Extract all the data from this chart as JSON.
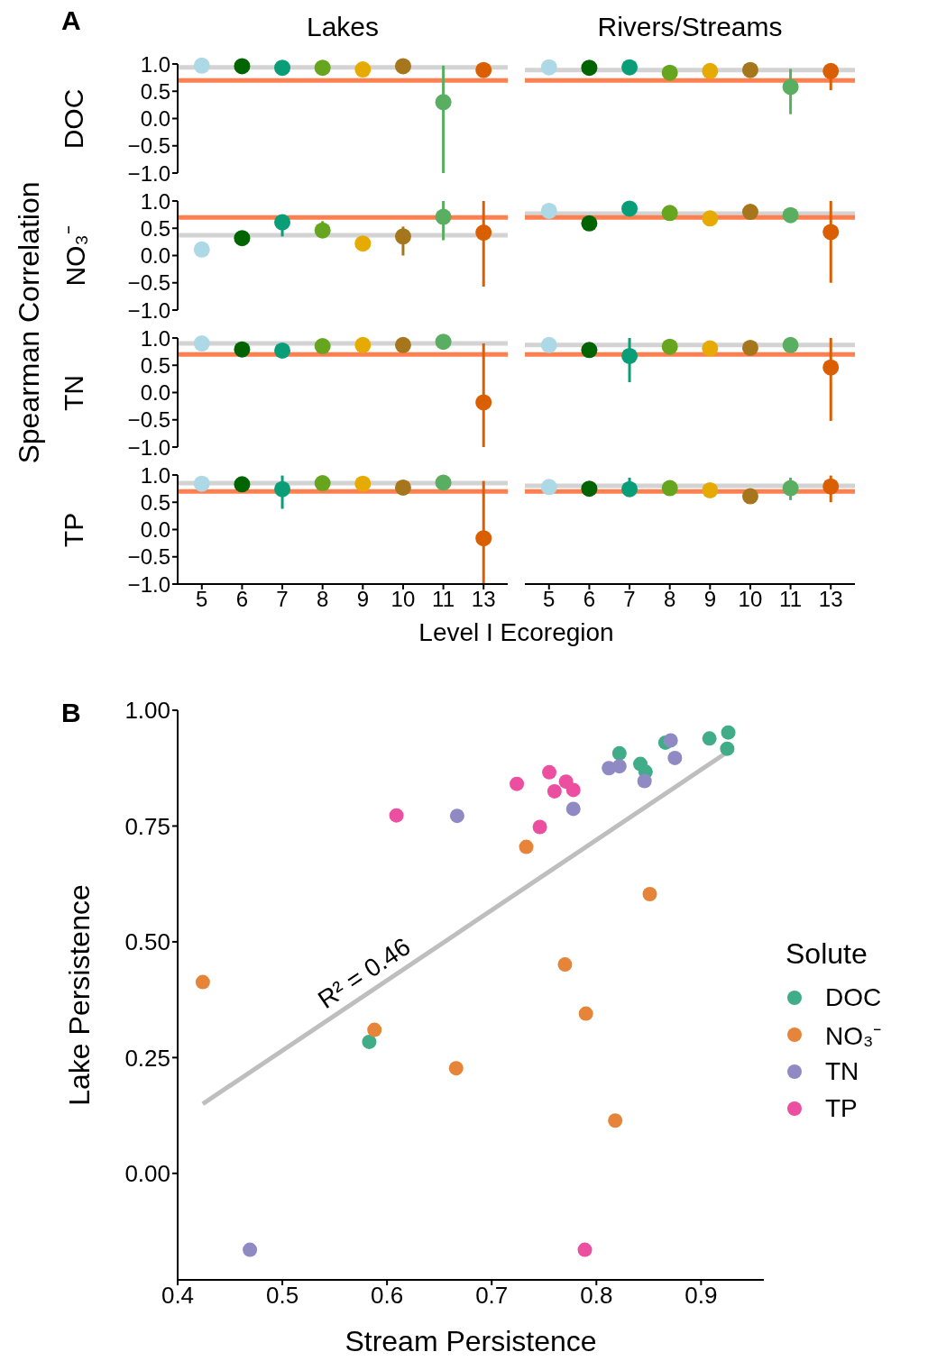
{
  "chart_data": [
    {
      "type": "scatter",
      "title": "Lakes",
      "ylabel": "DOC",
      "annotations": [
        "A",
        "Spearman Correlation"
      ],
      "categories": [
        "5",
        "6",
        "7",
        "8",
        "9",
        "10",
        "11",
        "13"
      ],
      "values": [
        0.97,
        0.96,
        0.93,
        0.93,
        0.9,
        0.96,
        0.3,
        0.89
      ],
      "colors": [
        "#add8e6",
        "#006400",
        "#0a9e78",
        "#66a61e",
        "#e6ab02",
        "#a6761d",
        "#5aae61",
        "#d95f02"
      ],
      "errors": [
        null,
        null,
        null,
        null,
        null,
        null,
        [
          -1.0,
          0.97
        ],
        null
      ],
      "ylim": [
        -1.0,
        1.0
      ],
      "yticks": [
        {
          "value": 1,
          "label": "1.0"
        },
        0.5,
        {
          "value": 0,
          "label": "0.0"
        },
        {
          "value": -0.5,
          "label": "−0.5"
        },
        {
          "value": -1,
          "label": "−1.0"
        }
      ],
      "ref_lines": [
        {
          "axis": "y",
          "value": 0.94,
          "color": "#d3d3d3"
        },
        {
          "axis": "y",
          "value": 0.7,
          "color": "#ff7f50"
        }
      ],
      "tick_labels": "y",
      "marker": "circle"
    },
    {
      "type": "scatter",
      "title": "Rivers/Streams",
      "categories": [
        "5",
        "6",
        "7",
        "8",
        "9",
        "10",
        "11",
        "13"
      ],
      "values": [
        0.94,
        0.93,
        0.94,
        0.84,
        0.87,
        0.89,
        0.58,
        0.87
      ],
      "colors": [
        "#add8e6",
        "#006400",
        "#0a9e78",
        "#66a61e",
        "#e6ab02",
        "#a6761d",
        "#5aae61",
        "#d95f02"
      ],
      "errors": [
        null,
        null,
        null,
        null,
        null,
        null,
        [
          0.08,
          0.91
        ],
        [
          0.52,
          0.87
        ]
      ],
      "ylim": [
        -1.0,
        1.0
      ],
      "ref_lines": [
        {
          "axis": "y",
          "value": 0.89,
          "color": "#d3d3d3"
        },
        {
          "axis": "y",
          "value": 0.7,
          "color": "#ff7f50"
        }
      ],
      "tick_labels": false,
      "marker": "circle"
    },
    {
      "type": "scatter",
      "ylabel": "NO₃⁻",
      "categories": [
        "5",
        "6",
        "7",
        "8",
        "9",
        "10",
        "11",
        "13"
      ],
      "values": [
        0.11,
        0.32,
        0.61,
        0.46,
        0.22,
        0.35,
        0.71,
        0.42
      ],
      "colors": [
        "#add8e6",
        "#006400",
        "#0a9e78",
        "#66a61e",
        "#e6ab02",
        "#a6761d",
        "#5aae61",
        "#d95f02"
      ],
      "errors": [
        null,
        null,
        [
          0.35,
          0.61
        ],
        [
          0.46,
          0.63
        ],
        null,
        [
          0.0,
          0.53
        ],
        [
          0.28,
          1.0
        ],
        [
          -0.57,
          1.0
        ]
      ],
      "ylim": [
        -1.0,
        1.0
      ],
      "yticks": [
        {
          "value": 1,
          "label": "1.0"
        },
        0.5,
        {
          "value": 0,
          "label": "0.0"
        },
        {
          "value": -0.5,
          "label": "−0.5"
        },
        {
          "value": -1,
          "label": "−1.0"
        }
      ],
      "ref_lines": [
        {
          "axis": "y",
          "value": 0.37,
          "color": "#d3d3d3"
        },
        {
          "axis": "y",
          "value": 0.7,
          "color": "#ff7f50"
        }
      ],
      "tick_labels": "y",
      "marker": "circle"
    },
    {
      "type": "scatter",
      "categories": [
        "5",
        "6",
        "7",
        "8",
        "9",
        "10",
        "11",
        "13"
      ],
      "values": [
        0.82,
        0.59,
        0.86,
        0.78,
        0.68,
        0.8,
        0.74,
        0.43
      ],
      "colors": [
        "#add8e6",
        "#006400",
        "#0a9e78",
        "#66a61e",
        "#e6ab02",
        "#a6761d",
        "#5aae61",
        "#d95f02"
      ],
      "errors": [
        null,
        null,
        null,
        null,
        null,
        null,
        null,
        [
          -0.5,
          1.0
        ]
      ],
      "ylim": [
        -1.0,
        1.0
      ],
      "ref_lines": [
        {
          "axis": "y",
          "value": 0.77,
          "color": "#d3d3d3"
        },
        {
          "axis": "y",
          "value": 0.7,
          "color": "#ff7f50"
        }
      ],
      "tick_labels": false,
      "marker": "circle"
    },
    {
      "type": "scatter",
      "ylabel": "TN",
      "categories": [
        "5",
        "6",
        "7",
        "8",
        "9",
        "10",
        "11",
        "13"
      ],
      "values": [
        0.9,
        0.79,
        0.77,
        0.85,
        0.87,
        0.87,
        0.93,
        -0.18
      ],
      "colors": [
        "#add8e6",
        "#006400",
        "#0a9e78",
        "#66a61e",
        "#e6ab02",
        "#a6761d",
        "#5aae61",
        "#d95f02"
      ],
      "errors": [
        null,
        null,
        null,
        null,
        null,
        null,
        null,
        [
          -1.0,
          0.9
        ]
      ],
      "ylim": [
        -1.0,
        1.0
      ],
      "yticks": [
        {
          "value": 1,
          "label": "1.0"
        },
        0.5,
        {
          "value": 0,
          "label": "0.0"
        },
        {
          "value": -0.5,
          "label": "−0.5"
        },
        {
          "value": -1,
          "label": "−1.0"
        }
      ],
      "ref_lines": [
        {
          "axis": "y",
          "value": 0.9,
          "color": "#d3d3d3"
        },
        {
          "axis": "y",
          "value": 0.7,
          "color": "#ff7f50"
        }
      ],
      "tick_labels": "y",
      "marker": "circle"
    },
    {
      "type": "scatter",
      "categories": [
        "5",
        "6",
        "7",
        "8",
        "9",
        "10",
        "11",
        "13"
      ],
      "values": [
        0.87,
        0.78,
        0.67,
        0.84,
        0.81,
        0.82,
        0.87,
        0.46
      ],
      "colors": [
        "#add8e6",
        "#006400",
        "#0a9e78",
        "#66a61e",
        "#e6ab02",
        "#a6761d",
        "#5aae61",
        "#d95f02"
      ],
      "errors": [
        null,
        null,
        [
          0.19,
          1.0
        ],
        null,
        null,
        null,
        null,
        [
          -0.52,
          1.0
        ]
      ],
      "ylim": [
        -1.0,
        1.0
      ],
      "ref_lines": [
        {
          "axis": "y",
          "value": 0.87,
          "color": "#d3d3d3"
        },
        {
          "axis": "y",
          "value": 0.7,
          "color": "#ff7f50"
        }
      ],
      "tick_labels": false,
      "marker": "circle"
    },
    {
      "type": "scatter",
      "ylabel": "TP",
      "xlabel": "Level I Ecoregion",
      "categories": [
        "5",
        "6",
        "7",
        "8",
        "9",
        "10",
        "11",
        "13"
      ],
      "values": [
        0.84,
        0.83,
        0.74,
        0.85,
        0.84,
        0.77,
        0.86,
        -0.16
      ],
      "colors": [
        "#add8e6",
        "#006400",
        "#0a9e78",
        "#66a61e",
        "#e6ab02",
        "#a6761d",
        "#5aae61",
        "#d95f02"
      ],
      "errors": [
        null,
        null,
        [
          0.38,
          0.99
        ],
        null,
        null,
        null,
        null,
        [
          -1.0,
          0.89
        ]
      ],
      "ylim": [
        -1.0,
        1.0
      ],
      "yticks": [
        {
          "value": 1,
          "label": "1.0"
        },
        0.5,
        {
          "value": 0,
          "label": "0.0"
        },
        {
          "value": -0.5,
          "label": "−0.5"
        },
        {
          "value": -1,
          "label": "−1.0"
        }
      ],
      "ref_lines": [
        {
          "axis": "y",
          "value": 0.85,
          "color": "#d3d3d3"
        },
        {
          "axis": "y",
          "value": 0.7,
          "color": "#ff7f50"
        }
      ],
      "marker": "circle"
    },
    {
      "type": "scatter",
      "categories": [
        "5",
        "6",
        "7",
        "8",
        "9",
        "10",
        "11",
        "13"
      ],
      "values": [
        0.78,
        0.75,
        0.74,
        0.76,
        0.72,
        0.61,
        0.76,
        0.79
      ],
      "colors": [
        "#add8e6",
        "#006400",
        "#0a9e78",
        "#66a61e",
        "#e6ab02",
        "#a6761d",
        "#5aae61",
        "#d95f02"
      ],
      "errors": [
        null,
        null,
        [
          0.74,
          0.95
        ],
        null,
        null,
        null,
        [
          0.54,
          0.95
        ],
        [
          0.5,
          0.99
        ]
      ],
      "ylim": [
        -1.0,
        1.0
      ],
      "ref_lines": [
        {
          "axis": "y",
          "value": 0.8,
          "color": "#d3d3d3"
        },
        {
          "axis": "y",
          "value": 0.7,
          "color": "#ff7f50"
        }
      ],
      "tick_labels": "x",
      "marker": "circle"
    },
    {
      "type": "scatter",
      "xlabel": "Stream Persistence",
      "ylabel": "Lake Persistence",
      "legend_title": "Solute",
      "legend": "right",
      "marker": "circle",
      "annotations": [
        "B",
        "R² = 0.46"
      ],
      "xlim": [
        0.4,
        0.96
      ],
      "xticks": [
        0.4,
        0.5,
        0.6,
        0.7,
        0.8,
        0.9
      ],
      "ylim": [
        -0.23,
        1.0
      ],
      "yticks": [
        {
          "value": 0,
          "label": "0.00"
        },
        0.25,
        {
          "value": 0.5,
          "label": "0.50"
        },
        0.75,
        {
          "value": 1,
          "label": "1.00"
        }
      ],
      "series": [
        {
          "type": "line",
          "marker": "none",
          "color": "#bebebe",
          "x": [
            0.424,
            0.926
          ],
          "values": [
            0.15,
            0.911
          ]
        },
        {
          "name": "DOC",
          "color": "#40ad88",
          "x": [
            0.926,
            0.925,
            0.908,
            0.866,
            0.822,
            0.842,
            0.847,
            0.583
          ],
          "values": [
            0.952,
            0.917,
            0.939,
            0.93,
            0.907,
            0.884,
            0.867,
            0.284
          ]
        },
        {
          "name": "NO₃⁻",
          "color": "#e6853a",
          "x": [
            0.424,
            0.588,
            0.666,
            0.733,
            0.77,
            0.79,
            0.818,
            0.851
          ],
          "values": [
            0.413,
            0.31,
            0.227,
            0.705,
            0.451,
            0.345,
            0.114,
            0.603
          ]
        },
        {
          "name": "TN",
          "color": "#8f8ac4",
          "x": [
            0.469,
            0.667,
            0.778,
            0.812,
            0.822,
            0.846,
            0.871,
            0.875
          ],
          "values": [
            -0.165,
            0.772,
            0.787,
            0.875,
            0.879,
            0.847,
            0.935,
            0.897
          ]
        },
        {
          "name": "TP",
          "color": "#ec4f9f",
          "x": [
            0.609,
            0.724,
            0.755,
            0.76,
            0.771,
            0.778,
            0.746,
            0.789
          ],
          "values": [
            0.773,
            0.841,
            0.866,
            0.825,
            0.846,
            0.828,
            0.748,
            -0.165
          ]
        }
      ]
    }
  ]
}
